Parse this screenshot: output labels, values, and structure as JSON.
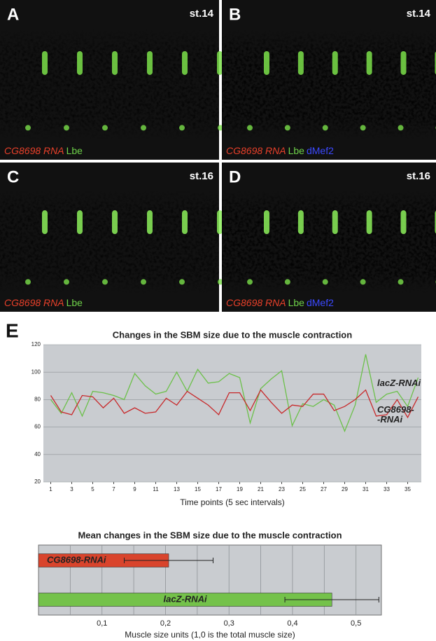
{
  "panels": [
    {
      "letter": "A",
      "stage": "st.14",
      "labels": [
        "CG8698 RNA",
        "Lbe"
      ]
    },
    {
      "letter": "B",
      "stage": "st.14",
      "labels": [
        "CG8698 RNA",
        "Lbe",
        "dMef2"
      ]
    },
    {
      "letter": "C",
      "stage": "st.16",
      "labels": [
        "CG8698 RNA",
        "Lbe"
      ]
    },
    {
      "letter": "D",
      "stage": "st.16",
      "labels": [
        "CG8698 RNA",
        "Lbe",
        "dMef2"
      ]
    }
  ],
  "figure_label": "E",
  "chart_data": [
    {
      "type": "line",
      "title": "Changes in the SBM size due to the muscle contraction",
      "x_label": "Time points (5 sec intervals)",
      "x": [
        1,
        2,
        3,
        4,
        5,
        6,
        7,
        8,
        9,
        10,
        11,
        12,
        13,
        14,
        15,
        16,
        17,
        18,
        19,
        20,
        21,
        22,
        23,
        24,
        25,
        26,
        27,
        28,
        29,
        30,
        31,
        32,
        33,
        34,
        35,
        36
      ],
      "series": [
        {
          "name": "lacZ-RNAi",
          "color": "#6cc04a",
          "values": [
            80,
            70,
            85,
            68,
            86,
            85,
            83,
            80,
            99,
            90,
            84,
            86,
            100,
            86,
            102,
            92,
            93,
            99,
            96,
            63,
            88,
            95,
            101,
            61,
            77,
            75,
            80,
            76,
            57,
            76,
            113,
            78,
            84,
            86,
            75,
            96
          ]
        },
        {
          "name": "CG8698-\n-RNAi",
          "color": "#c8282a",
          "values": [
            83,
            71,
            69,
            83,
            82,
            74,
            81,
            70,
            74,
            70,
            71,
            81,
            76,
            86,
            81,
            76,
            69,
            85,
            85,
            72,
            87,
            78,
            70,
            76,
            75,
            84,
            84,
            72,
            75,
            80,
            87,
            68,
            69,
            80,
            67,
            82
          ]
        }
      ],
      "xlim": [
        0.3,
        36.3
      ],
      "xticks": [
        1,
        3,
        5,
        7,
        9,
        11,
        13,
        15,
        17,
        19,
        21,
        23,
        25,
        27,
        29,
        31,
        33,
        35
      ],
      "ylim": [
        20,
        120
      ],
      "yticks": [
        20,
        40,
        60,
        80,
        100,
        120
      ],
      "grid": true
    },
    {
      "type": "hbar",
      "title": "Mean changes in the SBM size due to the muscle contraction",
      "x_label": "Muscle size units (1,0 is the total muscle size)",
      "categories": [
        "CG8698-RNAi",
        "lacZ-RNAi"
      ],
      "values": [
        0.205,
        0.462
      ],
      "errors": [
        0.07,
        0.074
      ],
      "colors": [
        "#d9442c",
        "#74c24a"
      ],
      "xlim": [
        0,
        0.54
      ],
      "xticks": [
        {
          "value": 0.1,
          "label": "0,1"
        },
        {
          "value": 0.2,
          "label": "0,2"
        },
        {
          "value": 0.3,
          "label": "0,3"
        },
        {
          "value": 0.4,
          "label": "0,4"
        },
        {
          "value": 0.5,
          "label": "0,5"
        }
      ],
      "minor_xticks": [
        0.05,
        0.15,
        0.25,
        0.35,
        0.45
      ],
      "grid": true
    }
  ]
}
